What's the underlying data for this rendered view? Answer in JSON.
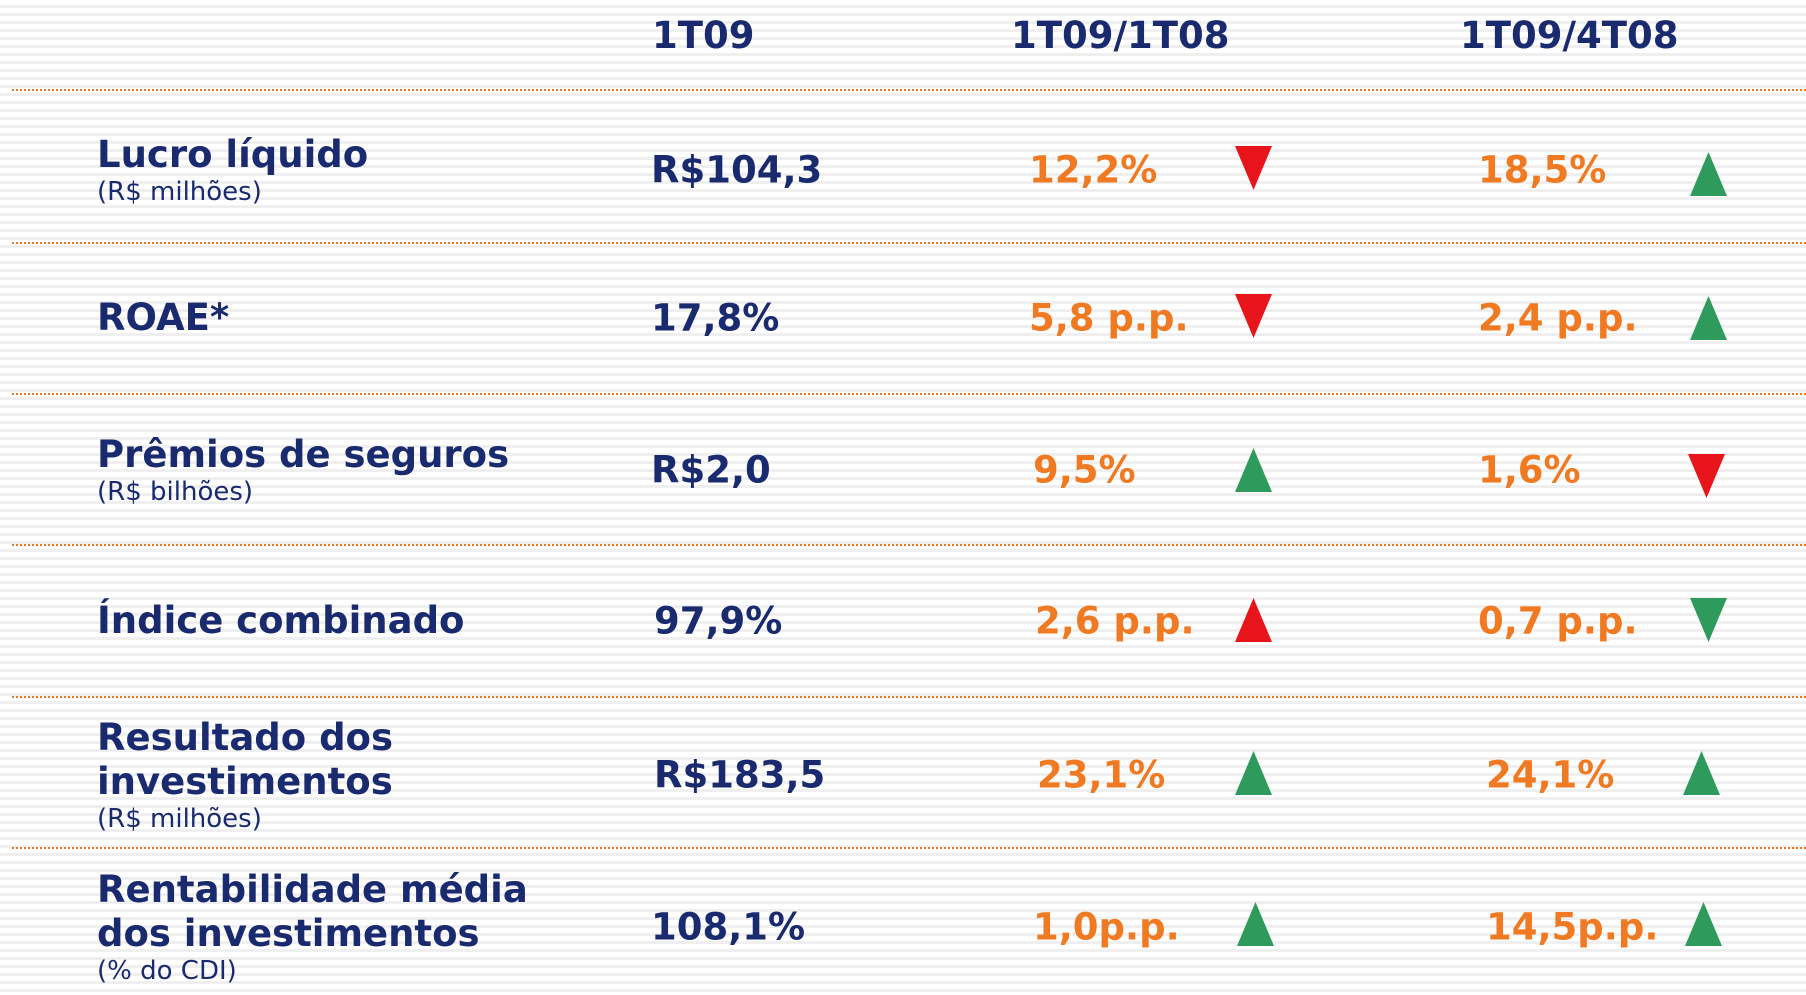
{
  "table": {
    "columns": [
      "1T09",
      "1T09/1T08",
      "1T09/4T08"
    ],
    "rows": [
      {
        "label": [
          "Lucro líquido"
        ],
        "sublabel": "(R$ milhões)",
        "value": "R$104,3",
        "change_year": "12,2%",
        "change_quarter": "18,5%"
      },
      {
        "label": [
          "ROAE*"
        ],
        "value": "17,8%",
        "change_year": "5,8 p.p.",
        "change_quarter": "2,4 p.p."
      },
      {
        "label": [
          "Prêmios de seguros"
        ],
        "sublabel": "(R$ bilhões)",
        "value": "R$2,0",
        "change_year": "9,5%",
        "change_quarter": "1,6%"
      },
      {
        "label": [
          "Índice combinado"
        ],
        "value": "97,9%",
        "change_year": "2,6 p.p.",
        "change_quarter": "0,7 p.p."
      },
      {
        "label": [
          "Resultado dos",
          "investimentos"
        ],
        "sublabel": "(R$ milhões)",
        "value": "R$183,5",
        "change_year": "23,1%",
        "change_quarter": "24,1%"
      },
      {
        "label": [
          "Rentabilidade média",
          "dos investimentos"
        ],
        "sublabel": "(% do CDI)",
        "value": "108,1%",
        "change_year": "1,0p.p.",
        "change_quarter": "14,5p.p."
      }
    ]
  }
}
